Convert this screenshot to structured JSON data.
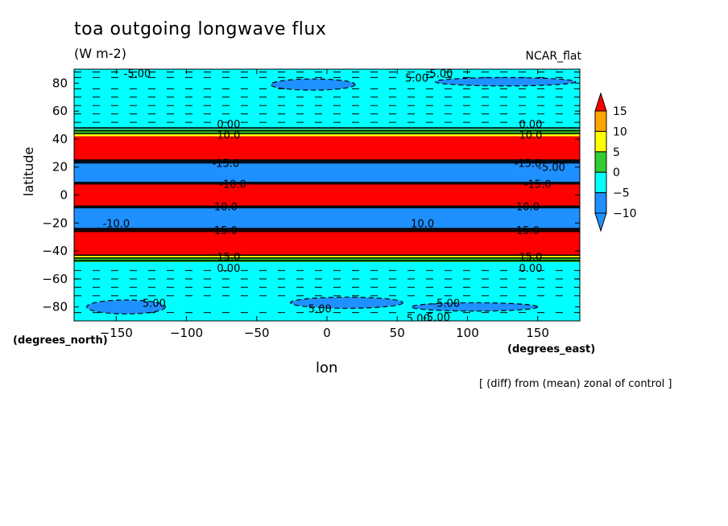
{
  "header": {
    "title": "toa outgoing longwave flux",
    "units": "(W m-2)",
    "run_name": "NCAR_flat"
  },
  "axes": {
    "ylabel": "latitude",
    "yunits": "(degrees_north)",
    "xlabel": "lon",
    "xunits": "(degrees_east)"
  },
  "footer": {
    "note": "[ (diff) from (mean) zonal of control ]"
  },
  "colors": {
    "c_lt_minus10": "#1e90ff",
    "c_minus10_minus5": "#1e90ff",
    "c_minus5_0": "#00ffff",
    "c_0_5": "#32cd32",
    "c_5_10": "#ffff00",
    "c_10_15": "#ffa500",
    "c_gt_15": "#ff0000"
  },
  "chart_data": {
    "type": "heatmap",
    "title": "toa outgoing longwave flux",
    "units": "(W m-2)",
    "xlabel": "lon",
    "ylabel": "latitude",
    "xlim": [
      -180,
      180
    ],
    "ylim": [
      -90,
      90
    ],
    "xticks": [
      -150,
      -100,
      -50,
      0,
      50,
      100,
      150
    ],
    "yticks": [
      -80,
      -60,
      -40,
      -20,
      0,
      20,
      40,
      60,
      80
    ],
    "xtick_labels": [
      "-150",
      "-100",
      "-50",
      "0",
      "50",
      "100",
      "150"
    ],
    "ytick_labels": [
      "-80",
      "-60",
      "-40",
      "-20",
      "0",
      "20",
      "40",
      "60",
      "80"
    ],
    "colorbar": {
      "levels": [
        -10,
        -5,
        0,
        5,
        10,
        15
      ],
      "labels": [
        "15",
        "10",
        "5",
        "0",
        "-5",
        "-10"
      ],
      "colors": [
        "#1e90ff",
        "#1e90ff",
        "#00ffff",
        "#32cd32",
        "#ffff00",
        "#ffa500",
        "#ff0000"
      ]
    },
    "bands": [
      {
        "lat_min": 47,
        "lat_max": 90,
        "fill": "#00ffff"
      },
      {
        "lat_min": 44,
        "lat_max": 47,
        "fill": "#32cd32"
      },
      {
        "lat_min": 42,
        "lat_max": 44,
        "fill": "#ffff00"
      },
      {
        "lat_min": 25,
        "lat_max": 42,
        "fill": "#ff0000"
      },
      {
        "lat_min": 8,
        "lat_max": 25,
        "fill": "#1e90ff"
      },
      {
        "lat_min": -8,
        "lat_max": 8,
        "fill": "#ff0000"
      },
      {
        "lat_min": -25,
        "lat_max": -8,
        "fill": "#1e90ff"
      },
      {
        "lat_min": -43,
        "lat_max": -25,
        "fill": "#ff0000"
      },
      {
        "lat_min": -45,
        "lat_max": -43,
        "fill": "#ffff00"
      },
      {
        "lat_min": -48,
        "lat_max": -45,
        "fill": "#32cd32"
      },
      {
        "lat_min": -90,
        "lat_max": -48,
        "fill": "#00ffff"
      }
    ],
    "blobs": [
      {
        "lon": -10,
        "lat": 79,
        "rlon": 30,
        "rlat": 4
      },
      {
        "lon": 127,
        "lat": 81,
        "rlon": 50,
        "rlat": 3
      },
      {
        "lon": -143,
        "lat": -80,
        "rlon": 28,
        "rlat": 5
      },
      {
        "lon": 14,
        "lat": -77,
        "rlon": 40,
        "rlat": 4
      },
      {
        "lon": 105,
        "lat": -80,
        "rlon": 45,
        "rlat": 3
      }
    ],
    "contour_labels": [
      {
        "text": "-5.00",
        "lon": -135,
        "lat": 87
      },
      {
        "text": "5.00",
        "lon": 64,
        "lat": 84
      },
      {
        "text": "-5.00",
        "lon": 80,
        "lat": 87
      },
      {
        "text": "0.00",
        "lon": -70,
        "lat": 51
      },
      {
        "text": "0.00",
        "lon": 145,
        "lat": 51
      },
      {
        "text": "10.0",
        "lon": -70,
        "lat": 43
      },
      {
        "text": "10.0",
        "lon": 145,
        "lat": 43
      },
      {
        "text": "-15.0",
        "lon": -72,
        "lat": 23
      },
      {
        "text": "-15.0",
        "lon": 143,
        "lat": 23
      },
      {
        "text": "-5.00",
        "lon": 160,
        "lat": 20
      },
      {
        "text": "-10.0",
        "lon": -67,
        "lat": 8
      },
      {
        "text": "-15.0",
        "lon": 150,
        "lat": 8
      },
      {
        "text": "10.0",
        "lon": -72,
        "lat": -8
      },
      {
        "text": "10.0",
        "lon": 143,
        "lat": -8
      },
      {
        "text": "-10.0",
        "lon": -150,
        "lat": -20
      },
      {
        "text": "10.0",
        "lon": 68,
        "lat": -20
      },
      {
        "text": "15.0",
        "lon": -72,
        "lat": -25
      },
      {
        "text": "15.0",
        "lon": 143,
        "lat": -25
      },
      {
        "text": "15.0",
        "lon": -70,
        "lat": -44
      },
      {
        "text": "15.0",
        "lon": 145,
        "lat": -44
      },
      {
        "text": "0.00",
        "lon": -70,
        "lat": -52
      },
      {
        "text": "0.00",
        "lon": 145,
        "lat": -52
      },
      {
        "text": "5.00",
        "lon": -123,
        "lat": -77
      },
      {
        "text": "5.00",
        "lon": -5,
        "lat": -81
      },
      {
        "text": "-5.00",
        "lon": 85,
        "lat": -77
      },
      {
        "text": "-5.00",
        "lon": 78,
        "lat": -87
      },
      {
        "text": "5.00",
        "lon": 65,
        "lat": -88
      }
    ]
  }
}
